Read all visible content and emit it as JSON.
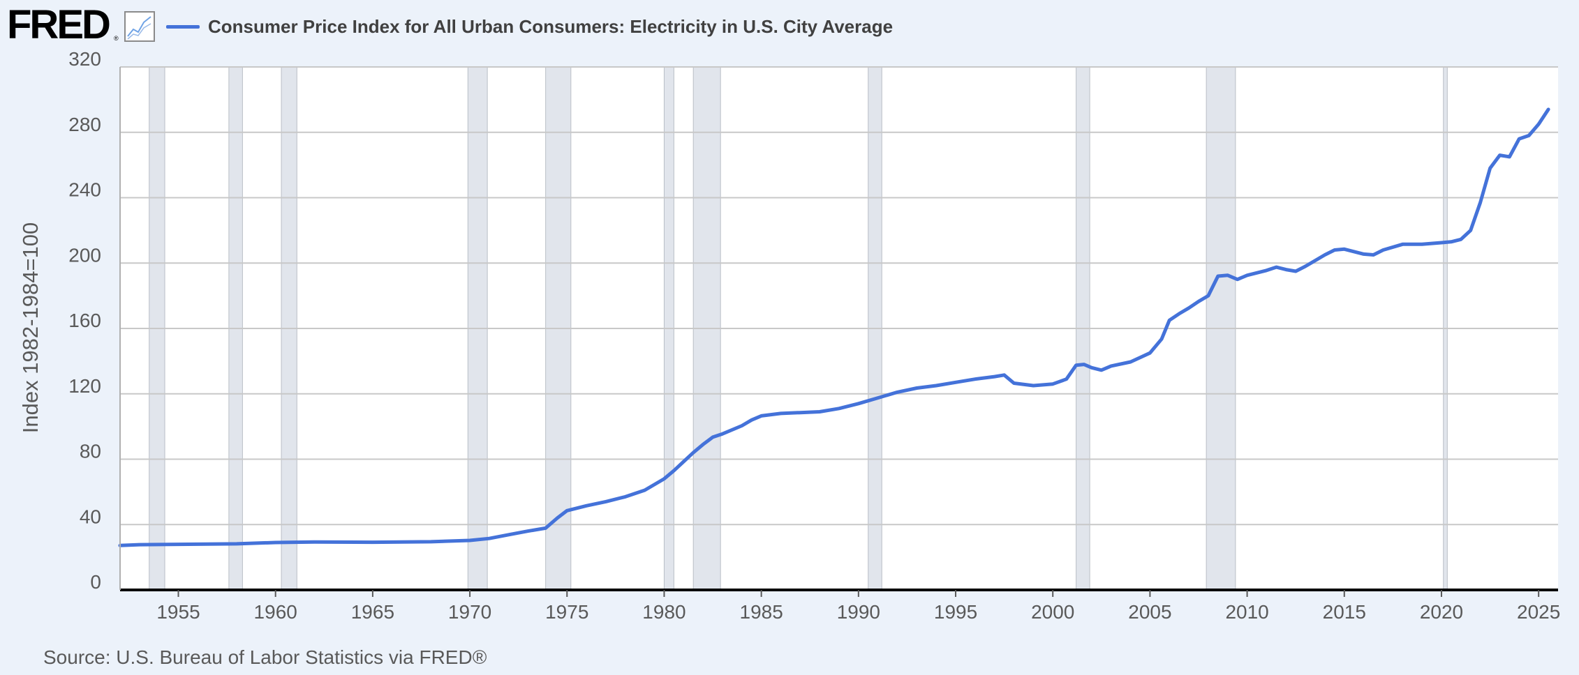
{
  "header": {
    "logo_text": "FRED",
    "logo_mark": "®",
    "graph_icon": "line-chart-icon",
    "title": "Consumer Price Index for All Urban Consumers: Electricity in U.S. City Average"
  },
  "footer": {
    "source": "Source: U.S. Bureau of Labor Statistics via FRED®"
  },
  "colors": {
    "line": "#4472d9",
    "recession": "#e1e5ec",
    "background": "#ecf2fa",
    "plot": "#ffffff",
    "grid": "#c8c8c8"
  },
  "chart_data": {
    "type": "line",
    "title": "Consumer Price Index for All Urban Consumers: Electricity in U.S. City Average",
    "ylabel": "Index 1982-1984=100",
    "xlabel": "",
    "xlim": [
      1952.0,
      2026.0
    ],
    "ylim": [
      0,
      320
    ],
    "y_ticks": [
      0,
      40,
      80,
      120,
      160,
      200,
      240,
      280,
      320
    ],
    "x_ticks": [
      1955,
      1960,
      1965,
      1970,
      1975,
      1980,
      1985,
      1990,
      1995,
      2000,
      2005,
      2010,
      2015,
      2020,
      2025
    ],
    "grid": true,
    "legend": "top-left",
    "recessions": [
      [
        1953.5,
        1954.3
      ],
      [
        1957.6,
        1958.3
      ],
      [
        1960.3,
        1961.1
      ],
      [
        1969.9,
        1970.9
      ],
      [
        1973.9,
        1975.2
      ],
      [
        1980.0,
        1980.5
      ],
      [
        1981.5,
        1982.9
      ],
      [
        1990.5,
        1991.2
      ],
      [
        2001.2,
        2001.9
      ],
      [
        2007.9,
        2009.4
      ],
      [
        2020.1,
        2020.3
      ]
    ],
    "series": [
      {
        "name": "Consumer Price Index for All Urban Consumers: Electricity in U.S. City Average",
        "x": [
          1952.0,
          1953.0,
          1955.0,
          1958.0,
          1960.0,
          1962.0,
          1965.0,
          1968.0,
          1970.0,
          1971.0,
          1972.0,
          1973.0,
          1973.9,
          1974.5,
          1975.0,
          1975.5,
          1976.0,
          1977.0,
          1978.0,
          1979.0,
          1980.0,
          1980.5,
          1981.0,
          1981.5,
          1982.0,
          1982.5,
          1983.0,
          1984.0,
          1984.5,
          1985.0,
          1986.0,
          1987.0,
          1988.0,
          1989.0,
          1990.0,
          1991.0,
          1992.0,
          1993.0,
          1994.0,
          1995.0,
          1996.0,
          1997.0,
          1997.5,
          1998.0,
          1999.0,
          2000.0,
          2000.7,
          2001.2,
          2001.6,
          2002.0,
          2002.5,
          2003.0,
          2004.0,
          2005.0,
          2005.6,
          2006.0,
          2006.5,
          2007.0,
          2007.5,
          2008.0,
          2008.5,
          2009.0,
          2009.5,
          2010.0,
          2011.0,
          2011.5,
          2012.0,
          2012.5,
          2013.0,
          2014.0,
          2014.5,
          2015.0,
          2016.0,
          2016.5,
          2017.0,
          2018.0,
          2019.0,
          2020.0,
          2020.5,
          2021.0,
          2021.5,
          2022.0,
          2022.5,
          2023.0,
          2023.5,
          2024.0,
          2024.5,
          2025.0,
          2025.5
        ],
        "values": [
          27.2,
          27.7,
          27.9,
          28.2,
          29.0,
          29.3,
          29.2,
          29.5,
          30.3,
          31.5,
          33.8,
          36.0,
          37.8,
          44.0,
          48.5,
          50.0,
          51.5,
          54.0,
          57.0,
          61.0,
          68.0,
          73.0,
          78.5,
          84.0,
          89.0,
          93.5,
          95.5,
          100.5,
          104.0,
          106.5,
          108.0,
          108.5,
          109.0,
          111.0,
          114.0,
          117.5,
          121.0,
          123.5,
          125.0,
          127.0,
          129.0,
          130.5,
          131.5,
          126.5,
          125.0,
          126.0,
          129.0,
          137.5,
          138.0,
          136.0,
          134.5,
          137.0,
          139.5,
          145.0,
          153.5,
          165.0,
          169.0,
          172.5,
          176.5,
          180.0,
          192.0,
          192.5,
          190.0,
          192.5,
          195.5,
          197.5,
          196.0,
          195.0,
          198.0,
          205.0,
          208.0,
          208.5,
          205.5,
          205.0,
          208.0,
          211.5,
          211.5,
          212.5,
          213.0,
          214.5,
          220.0,
          237.0,
          258.0,
          266.0,
          265.0,
          276.0,
          278.0,
          285.0,
          294.0
        ]
      }
    ]
  }
}
